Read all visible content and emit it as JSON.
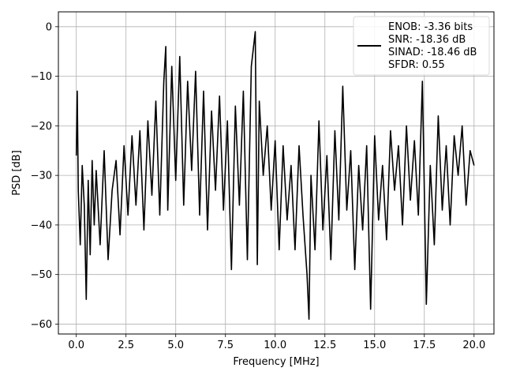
{
  "chart_data": {
    "type": "line",
    "title": "",
    "xlabel": "Frequency [MHz]",
    "ylabel": "PSD [dB]",
    "xlim": [
      -0.9,
      21.0
    ],
    "ylim": [
      -62,
      3
    ],
    "xticks": [
      0.0,
      2.5,
      5.0,
      7.5,
      10.0,
      12.5,
      15.0,
      17.5,
      20.0
    ],
    "xtick_labels": [
      "0.0",
      "2.5",
      "5.0",
      "7.5",
      "10.0",
      "12.5",
      "15.0",
      "17.5",
      "20.0"
    ],
    "yticks": [
      0,
      -10,
      -20,
      -30,
      -40,
      -50,
      -60
    ],
    "ytick_labels": [
      "0",
      "−10",
      "−20",
      "−30",
      "−40",
      "−50",
      "−60"
    ],
    "grid": true,
    "legend_position": "top-right",
    "legend_entries": [
      "ENOB: -3.36 bits",
      "SNR: -18.36 dB",
      "SINAD: -18.46 dB",
      "SFDR: 0.55"
    ],
    "line_color": "#000000",
    "series": [
      {
        "x": [
          0.0,
          0.05,
          0.1,
          0.2,
          0.3,
          0.4,
          0.5,
          0.6,
          0.7,
          0.8,
          0.9,
          1.0,
          1.2,
          1.4,
          1.6,
          1.8,
          2.0,
          2.2,
          2.4,
          2.6,
          2.8,
          3.0,
          3.2,
          3.4,
          3.6,
          3.8,
          4.0,
          4.2,
          4.4,
          4.5,
          4.6,
          4.8,
          5.0,
          5.2,
          5.4,
          5.6,
          5.8,
          6.0,
          6.2,
          6.4,
          6.6,
          6.8,
          7.0,
          7.2,
          7.4,
          7.6,
          7.8,
          8.0,
          8.2,
          8.4,
          8.6,
          8.8,
          9.0,
          9.1,
          9.2,
          9.4,
          9.6,
          9.8,
          10.0,
          10.2,
          10.4,
          10.6,
          10.8,
          11.0,
          11.2,
          11.4,
          11.6,
          11.7,
          11.8,
          12.0,
          12.2,
          12.4,
          12.6,
          12.8,
          13.0,
          13.2,
          13.4,
          13.6,
          13.8,
          14.0,
          14.2,
          14.4,
          14.6,
          14.8,
          15.0,
          15.2,
          15.4,
          15.6,
          15.8,
          16.0,
          16.2,
          16.4,
          16.6,
          16.8,
          17.0,
          17.2,
          17.4,
          17.6,
          17.8,
          18.0,
          18.2,
          18.4,
          18.6,
          18.8,
          19.0,
          19.2,
          19.4,
          19.6,
          19.8,
          20.0
        ],
        "y": [
          -26,
          -13,
          -33,
          -44,
          -28,
          -36,
          -55,
          -31,
          -46,
          -27,
          -40,
          -29,
          -44,
          -25,
          -47,
          -33,
          -27,
          -42,
          -24,
          -38,
          -22,
          -36,
          -21,
          -41,
          -19,
          -34,
          -15,
          -38,
          -11,
          -4,
          -37,
          -8,
          -31,
          -6,
          -36,
          -11,
          -29,
          -9,
          -38,
          -13,
          -41,
          -17,
          -33,
          -14,
          -37,
          -19,
          -49,
          -16,
          -36,
          -13,
          -47,
          -8,
          -1,
          -48,
          -15,
          -30,
          -20,
          -37,
          -23,
          -45,
          -24,
          -39,
          -28,
          -45,
          -24,
          -38,
          -50,
          -59,
          -30,
          -45,
          -19,
          -41,
          -26,
          -47,
          -21,
          -39,
          -12,
          -37,
          -25,
          -49,
          -28,
          -41,
          -24,
          -57,
          -22,
          -39,
          -28,
          -43,
          -21,
          -33,
          -24,
          -40,
          -20,
          -35,
          -23,
          -38,
          -11,
          -56,
          -28,
          -44,
          -18,
          -37,
          -24,
          -40,
          -22,
          -30,
          -20,
          -36,
          -25,
          -28
        ]
      }
    ]
  }
}
